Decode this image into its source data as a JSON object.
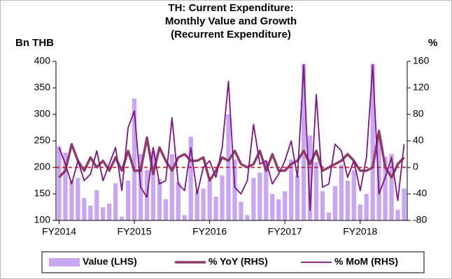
{
  "chart_data": {
    "type": "bar_line",
    "title": [
      "TH: Current Expenditure:",
      "Monthly Value and Growth",
      "(Recurrent Expenditure)"
    ],
    "ylabel": "Bn THB",
    "y2label": "%",
    "categories": [
      "FY2014",
      null,
      null,
      null,
      null,
      null,
      null,
      null,
      null,
      null,
      null,
      null,
      "FY2015",
      null,
      null,
      null,
      null,
      null,
      null,
      null,
      null,
      null,
      null,
      null,
      "FY2016",
      null,
      null,
      null,
      null,
      null,
      null,
      null,
      null,
      null,
      null,
      null,
      "FY2017",
      null,
      null,
      null,
      null,
      null,
      null,
      null,
      null,
      null,
      null,
      null,
      "FY2018",
      null,
      null,
      null,
      null,
      null,
      null,
      null
    ],
    "series": [
      {
        "name": "Value (LHS)",
        "color": "#c9a6f2",
        "kind": "bar",
        "axis": "y",
        "values": [
          240,
          228,
          175,
          180,
          142,
          128,
          157,
          125,
          132,
          170,
          107,
          175,
          330,
          225,
          195,
          230,
          178,
          140,
          225,
          172,
          110,
          258,
          155,
          160,
          175,
          145,
          185,
          300,
          215,
          135,
          110,
          180,
          190,
          210,
          150,
          140,
          155,
          215,
          185,
          395,
          260,
          210,
          155,
          115,
          165,
          205,
          175,
          195,
          130,
          150,
          395,
          260,
          220,
          225,
          120,
          160
        ]
      },
      {
        "name": "% YoY (RHS)",
        "color": "#8e3b68",
        "kind": "line",
        "width": 3.5,
        "axis": "y2",
        "values": [
          -15,
          -5,
          35,
          10,
          -5,
          15,
          0,
          10,
          -5,
          15,
          -5,
          25,
          -5,
          -5,
          45,
          -10,
          30,
          10,
          -5,
          15,
          20,
          10,
          10,
          15,
          -20,
          -5,
          15,
          10,
          25,
          5,
          0,
          5,
          25,
          -5,
          20,
          -5,
          -5,
          5,
          10,
          25,
          5,
          25,
          -5,
          0,
          5,
          10,
          20,
          10,
          -5,
          -5,
          0,
          55,
          0,
          -15,
          5,
          15
        ]
      },
      {
        "name": "% MoM (RHS)",
        "color": "#7a1480",
        "kind": "line",
        "width": 1.8,
        "axis": "y2",
        "values": [
          30,
          5,
          -25,
          10,
          -20,
          -10,
          25,
          -20,
          5,
          30,
          -35,
          60,
          85,
          -30,
          -45,
          30,
          -25,
          -20,
          75,
          -25,
          -35,
          30,
          -40,
          0,
          10,
          -15,
          30,
          130,
          -30,
          -40,
          -20,
          65,
          5,
          10,
          -25,
          -10,
          10,
          40,
          -15,
          155,
          -65,
          110,
          -30,
          -25,
          35,
          25,
          -15,
          10,
          -35,
          15,
          155,
          -40,
          -15,
          15,
          -50,
          35
        ]
      }
    ],
    "ylim": [
      100,
      400
    ],
    "yticks": [
      100,
      150,
      200,
      250,
      300,
      350,
      400
    ],
    "y2lim": [
      -80,
      160
    ],
    "y2ticks": [
      -80,
      -40,
      0,
      40,
      80,
      120,
      160
    ],
    "reference_line": {
      "axis": "y2",
      "value": 0,
      "color": "#e00000"
    },
    "legend": "bottom"
  }
}
